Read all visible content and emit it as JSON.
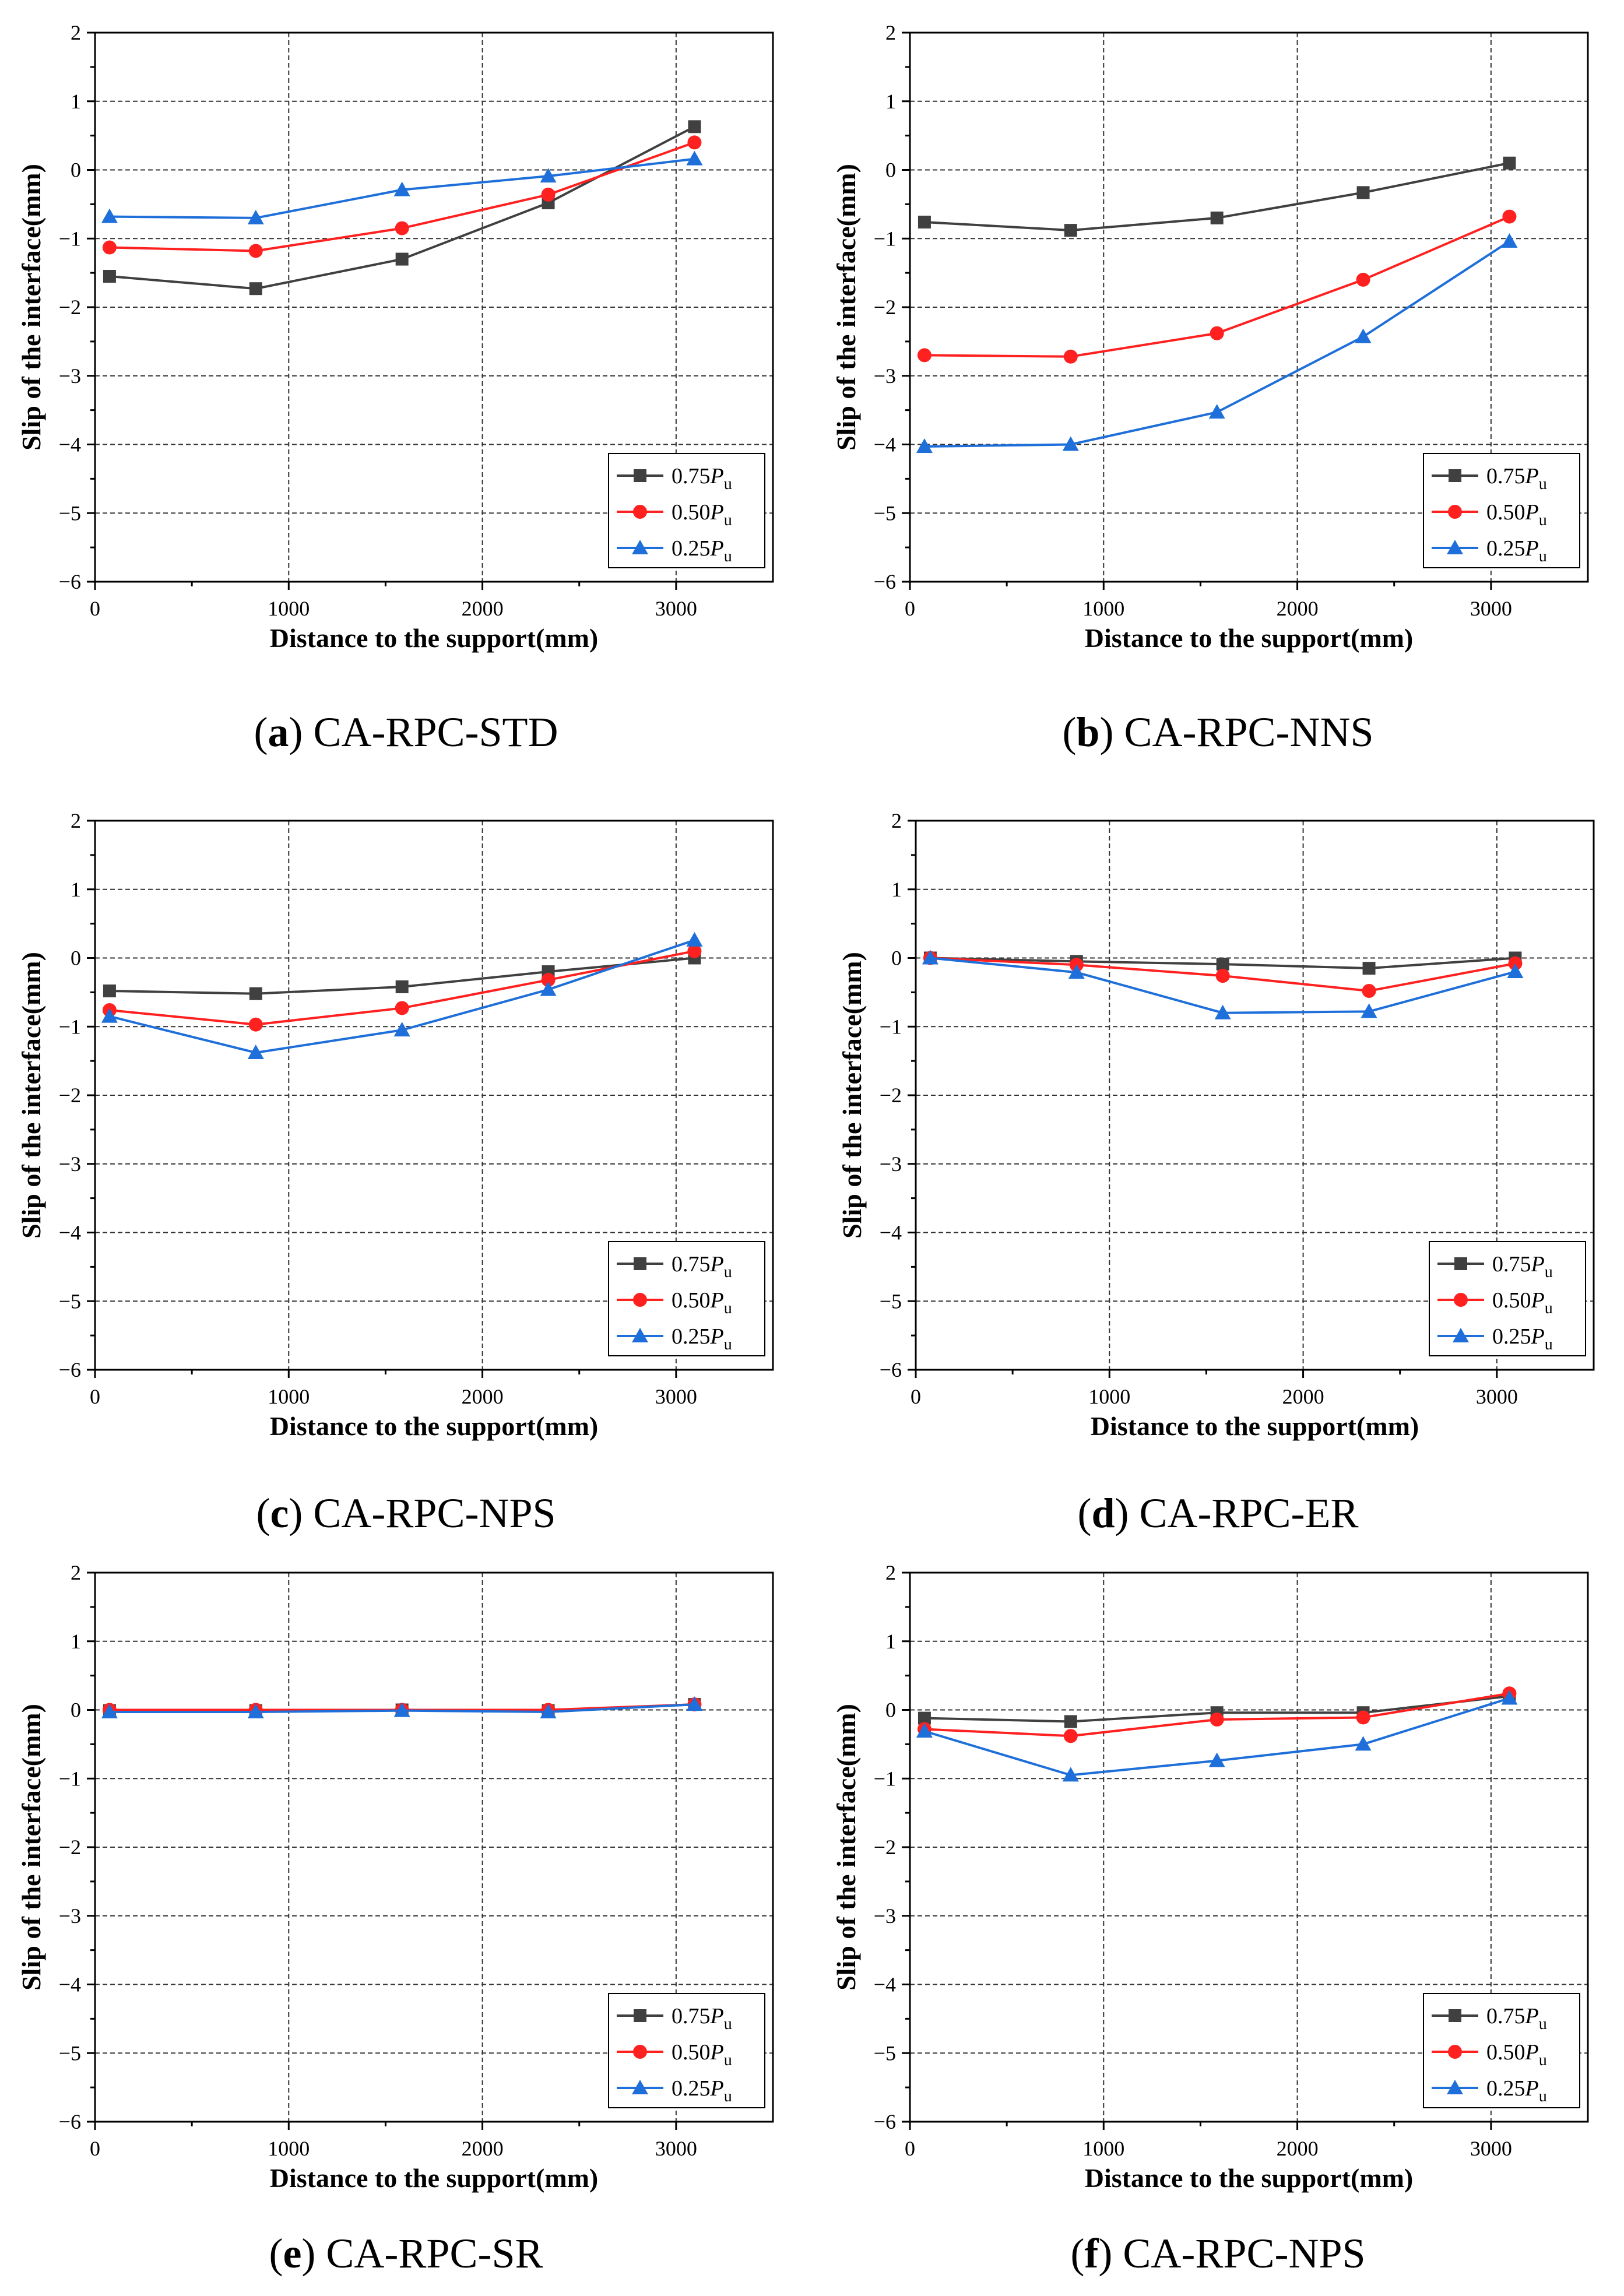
{
  "figure": {
    "panels": [
      {
        "label": "a",
        "title": "CA-RPC-STD"
      },
      {
        "label": "b",
        "title": "CA-RPC-NNS"
      },
      {
        "label": "c",
        "title": "CA-RPC-NPS"
      },
      {
        "label": "d",
        "title": "CA-RPC-ER"
      },
      {
        "label": "e",
        "title": "CA-RPC-SR"
      },
      {
        "label": "f",
        "title": "CA-RPC-NPS"
      }
    ]
  },
  "chart_data": [
    {
      "type": "line",
      "title": "CA-RPC-STD",
      "xlabel": "Distance to the support(mm)",
      "ylabel": "Slip of the interface(mm)",
      "xlim": [
        0,
        3500
      ],
      "ylim": [
        -6,
        2
      ],
      "xticks": [
        0,
        1000,
        2000,
        3000
      ],
      "yticks": [
        -6,
        -5,
        -4,
        -3,
        -2,
        -1,
        0,
        1,
        2
      ],
      "grid": true,
      "legend_position": "bottom-right",
      "x": [
        75,
        830,
        1585,
        2340,
        3095
      ],
      "series": [
        {
          "name": "0.75",
          "subscript_label": "P",
          "subscript": "u",
          "color": "#404040",
          "marker": "square",
          "values": [
            -1.55,
            -1.73,
            -1.3,
            -0.48,
            0.63
          ]
        },
        {
          "name": "0.50",
          "subscript_label": "P",
          "subscript": "u",
          "color": "#ff2020",
          "marker": "circle",
          "values": [
            -1.13,
            -1.18,
            -0.85,
            -0.36,
            0.4
          ]
        },
        {
          "name": "0.25",
          "subscript_label": "P",
          "subscript": "u",
          "color": "#1e6fd9",
          "marker": "triangle",
          "values": [
            -0.68,
            -0.7,
            -0.29,
            -0.09,
            0.16
          ]
        }
      ]
    },
    {
      "type": "line",
      "title": "CA-RPC-NNS",
      "xlabel": "Distance to the support(mm)",
      "ylabel": "Slip of the interface(mm)",
      "xlim": [
        0,
        3500
      ],
      "ylim": [
        -6,
        2
      ],
      "xticks": [
        0,
        1000,
        2000,
        3000
      ],
      "yticks": [
        -6,
        -5,
        -4,
        -3,
        -2,
        -1,
        0,
        1,
        2
      ],
      "grid": true,
      "legend_position": "bottom-right",
      "x": [
        75,
        830,
        1585,
        2340,
        3095
      ],
      "series": [
        {
          "name": "0.75",
          "subscript_label": "P",
          "subscript": "u",
          "color": "#404040",
          "marker": "square",
          "values": [
            -0.76,
            -0.88,
            -0.7,
            -0.33,
            0.1
          ]
        },
        {
          "name": "0.50",
          "subscript_label": "P",
          "subscript": "u",
          "color": "#ff2020",
          "marker": "circle",
          "values": [
            -2.7,
            -2.72,
            -2.38,
            -1.6,
            -0.68
          ]
        },
        {
          "name": "0.25",
          "subscript_label": "P",
          "subscript": "u",
          "color": "#1e6fd9",
          "marker": "triangle",
          "values": [
            -4.03,
            -4.0,
            -3.53,
            -2.43,
            -1.04
          ]
        }
      ]
    },
    {
      "type": "line",
      "title": "CA-RPC-NPS",
      "xlabel": "Distance to the support(mm)",
      "ylabel": "Slip of the interface(mm)",
      "xlim": [
        0,
        3500
      ],
      "ylim": [
        -6,
        2
      ],
      "xticks": [
        0,
        1000,
        2000,
        3000
      ],
      "yticks": [
        -6,
        -5,
        -4,
        -3,
        -2,
        -1,
        0,
        1,
        2
      ],
      "grid": true,
      "legend_position": "bottom-right",
      "x": [
        75,
        830,
        1585,
        2340,
        3095
      ],
      "series": [
        {
          "name": "0.75",
          "subscript_label": "P",
          "subscript": "u",
          "color": "#404040",
          "marker": "square",
          "values": [
            -0.48,
            -0.52,
            -0.42,
            -0.2,
            0.0
          ]
        },
        {
          "name": "0.50",
          "subscript_label": "P",
          "subscript": "u",
          "color": "#ff2020",
          "marker": "circle",
          "values": [
            -0.76,
            -0.97,
            -0.73,
            -0.32,
            0.1
          ]
        },
        {
          "name": "0.25",
          "subscript_label": "P",
          "subscript": "u",
          "color": "#1e6fd9",
          "marker": "triangle",
          "values": [
            -0.85,
            -1.38,
            -1.05,
            -0.46,
            0.26
          ]
        }
      ]
    },
    {
      "type": "line",
      "title": "CA-RPC-ER",
      "xlabel": "Distance to the support(mm)",
      "ylabel": "Slip of the interface(mm)",
      "xlim": [
        0,
        3500
      ],
      "ylim": [
        -6,
        2
      ],
      "xticks": [
        0,
        1000,
        2000,
        3000
      ],
      "yticks": [
        -6,
        -5,
        -4,
        -3,
        -2,
        -1,
        0,
        1,
        2
      ],
      "grid": true,
      "legend_position": "bottom-right",
      "x": [
        75,
        830,
        1585,
        2340,
        3095
      ],
      "series": [
        {
          "name": "0.75",
          "subscript_label": "P",
          "subscript": "u",
          "color": "#404040",
          "marker": "square",
          "values": [
            0.0,
            -0.05,
            -0.09,
            -0.15,
            0.0
          ]
        },
        {
          "name": "0.50",
          "subscript_label": "P",
          "subscript": "u",
          "color": "#ff2020",
          "marker": "circle",
          "values": [
            0.0,
            -0.1,
            -0.26,
            -0.48,
            -0.08
          ]
        },
        {
          "name": "0.25",
          "subscript_label": "P",
          "subscript": "u",
          "color": "#1e6fd9",
          "marker": "triangle",
          "values": [
            0.0,
            -0.21,
            -0.8,
            -0.78,
            -0.2
          ]
        }
      ]
    },
    {
      "type": "line",
      "title": "CA-RPC-SR",
      "xlabel": "Distance to the support(mm)",
      "ylabel": "Slip of the interface(mm)",
      "xlim": [
        0,
        3500
      ],
      "ylim": [
        -6,
        2
      ],
      "xticks": [
        0,
        1000,
        2000,
        3000
      ],
      "yticks": [
        -6,
        -5,
        -4,
        -3,
        -2,
        -1,
        0,
        1,
        2
      ],
      "grid": true,
      "legend_position": "bottom-right",
      "x": [
        75,
        830,
        1585,
        2340,
        3095
      ],
      "series": [
        {
          "name": "0.75",
          "subscript_label": "P",
          "subscript": "u",
          "color": "#404040",
          "marker": "square",
          "values": [
            -0.01,
            -0.01,
            0.0,
            -0.01,
            0.08
          ]
        },
        {
          "name": "0.50",
          "subscript_label": "P",
          "subscript": "u",
          "color": "#ff2020",
          "marker": "circle",
          "values": [
            0.0,
            0.0,
            0.0,
            0.0,
            0.08
          ]
        },
        {
          "name": "0.25",
          "subscript_label": "P",
          "subscript": "u",
          "color": "#1e6fd9",
          "marker": "triangle",
          "values": [
            -0.03,
            -0.03,
            -0.01,
            -0.03,
            0.08
          ]
        }
      ]
    },
    {
      "type": "line",
      "title": "CA-RPC-NPS",
      "xlabel": "Distance to the support(mm)",
      "ylabel": "Slip of the interface(mm)",
      "xlim": [
        0,
        3500
      ],
      "ylim": [
        -6,
        2
      ],
      "xticks": [
        0,
        1000,
        2000,
        3000
      ],
      "yticks": [
        -6,
        -5,
        -4,
        -3,
        -2,
        -1,
        0,
        1,
        2
      ],
      "grid": true,
      "legend_position": "bottom-right",
      "x": [
        75,
        830,
        1585,
        2340,
        3095
      ],
      "series": [
        {
          "name": "0.75",
          "subscript_label": "P",
          "subscript": "u",
          "color": "#404040",
          "marker": "square",
          "values": [
            -0.12,
            -0.17,
            -0.04,
            -0.04,
            0.2
          ]
        },
        {
          "name": "0.50",
          "subscript_label": "P",
          "subscript": "u",
          "color": "#ff2020",
          "marker": "circle",
          "values": [
            -0.28,
            -0.38,
            -0.14,
            -0.11,
            0.24
          ]
        },
        {
          "name": "0.25",
          "subscript_label": "P",
          "subscript": "u",
          "color": "#1e6fd9",
          "marker": "triangle",
          "values": [
            -0.31,
            -0.95,
            -0.74,
            -0.5,
            0.17
          ]
        }
      ]
    }
  ]
}
